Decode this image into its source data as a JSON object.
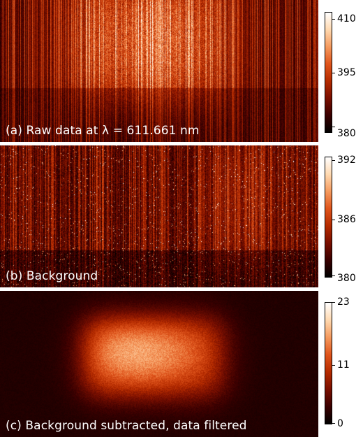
{
  "panels": [
    {
      "id": "a",
      "label": "(a) Raw data at λ = 611.661 nm",
      "colorbar": {
        "max": "410",
        "mid": "395",
        "min": "380"
      }
    },
    {
      "id": "b",
      "label": "(b) Background",
      "colorbar": {
        "max": "392",
        "mid": "386",
        "min": "380"
      }
    },
    {
      "id": "c",
      "label": "(c) Background subtracted, data filtered",
      "colorbar": {
        "max": "23",
        "mid": "11",
        "min": "0"
      }
    }
  ],
  "colormap": [
    "#000000",
    "#3a0000",
    "#7a0f00",
    "#b52b00",
    "#e0551c",
    "#f59a5e",
    "#ffd9b0",
    "#ffffff"
  ]
}
